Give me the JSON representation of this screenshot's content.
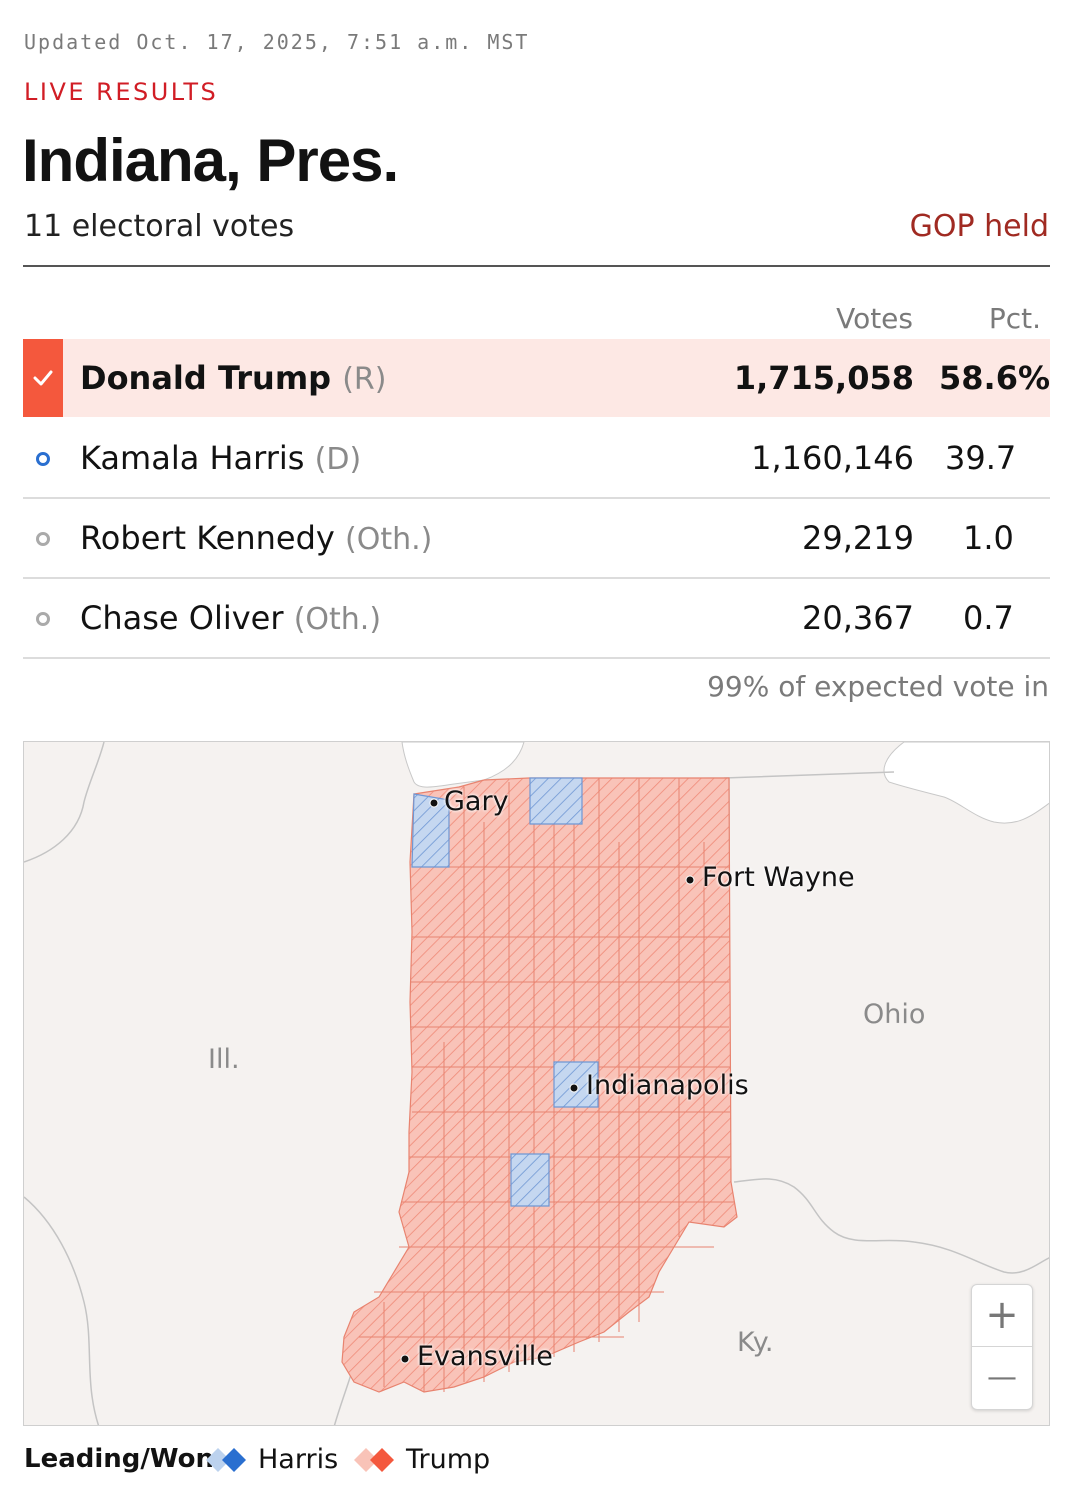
{
  "header": {
    "updated": "Updated Oct. 17, 2025, 7:51 a.m. MST",
    "live_label": "LIVE RESULTS",
    "title": "Indiana, Pres.",
    "subtitle": "11 electoral votes",
    "held_label": "GOP held"
  },
  "table": {
    "columns": {
      "votes": "Votes",
      "pct": "Pct."
    },
    "rows": [
      {
        "name": "Donald Trump",
        "party": "(R)",
        "votes": "1,715,058",
        "pct": "58.6%",
        "winner": true
      },
      {
        "name": "Kamala Harris",
        "party": "(D)",
        "votes": "1,160,146",
        "pct": "39.7"
      },
      {
        "name": "Robert Kennedy",
        "party": "(Oth.)",
        "votes": "29,219",
        "pct": "1.0"
      },
      {
        "name": "Chase Oliver",
        "party": "(Oth.)",
        "votes": "20,367",
        "pct": "0.7"
      }
    ],
    "expected": "99% of expected vote in"
  },
  "map": {
    "cities": [
      "Gary",
      "Fort Wayne",
      "Indianapolis",
      "Evansville"
    ],
    "regions": [
      "Ill.",
      "Ohio",
      "Ky."
    ],
    "zoom_in": "+",
    "zoom_out": "—"
  },
  "legend": {
    "title": "Leading/Won",
    "harris": "Harris",
    "trump": "Trump"
  },
  "colors": {
    "trump": "#f4583d",
    "trump_fill": "#f9c3b8",
    "harris": "#2a6fd0",
    "harris_fill": "#bcd2ee",
    "live": "#d11d25",
    "gop_held": "#a02a22"
  }
}
